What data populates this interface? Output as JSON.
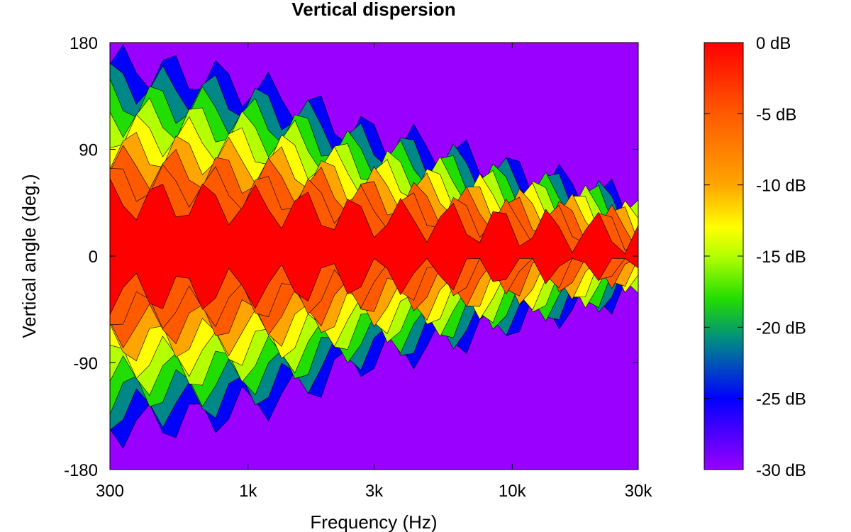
{
  "chart_data": {
    "type": "heatmap",
    "subtype": "contour",
    "title": "Vertical dispersion",
    "xlabel": "Frequency (Hz)",
    "ylabel": "Vertical angle (deg.)",
    "x_scale": "log",
    "xlim": [
      300,
      30000
    ],
    "ylim": [
      -180,
      180
    ],
    "x_ticks": [
      300,
      1000,
      3000,
      10000,
      30000
    ],
    "x_tick_labels": [
      "300",
      "1k",
      "3k",
      "10k",
      "30k"
    ],
    "y_ticks": [
      180,
      90,
      0,
      -90,
      -180
    ],
    "y_tick_labels": [
      "180",
      "90",
      "0",
      "-90",
      "-180"
    ],
    "z_range": [
      -30,
      0
    ],
    "colorbar_ticks": [
      0,
      -5,
      -10,
      -15,
      -20,
      -25,
      -30
    ],
    "colorbar_labels": [
      "0 dB",
      "-5 dB",
      "-10 dB",
      "-15 dB",
      "-20 dB",
      "-25 dB",
      "-30 dB"
    ],
    "colormap": [
      {
        "db": 0,
        "color": "#ff0000"
      },
      {
        "db": -5,
        "color": "#ff5a00"
      },
      {
        "db": -10,
        "color": "#ffa500"
      },
      {
        "db": -13,
        "color": "#ffff00"
      },
      {
        "db": -15,
        "color": "#b4ff00"
      },
      {
        "db": -18,
        "color": "#22dd00"
      },
      {
        "db": -21,
        "color": "#008888"
      },
      {
        "db": -25,
        "color": "#0000ff"
      },
      {
        "db": -30,
        "color": "#9900ff"
      }
    ],
    "coverage_angle_half_width": [
      {
        "freq": 300,
        "deg": 150
      },
      {
        "freq": 700,
        "deg": 140
      },
      {
        "freq": 1500,
        "deg": 120
      },
      {
        "freq": 2500,
        "deg": 95
      },
      {
        "freq": 5000,
        "deg": 80
      },
      {
        "freq": 10000,
        "deg": 60
      },
      {
        "freq": 20000,
        "deg": 45
      },
      {
        "freq": 30000,
        "deg": 30
      }
    ],
    "grid": false,
    "legend": "colorbar-right"
  }
}
